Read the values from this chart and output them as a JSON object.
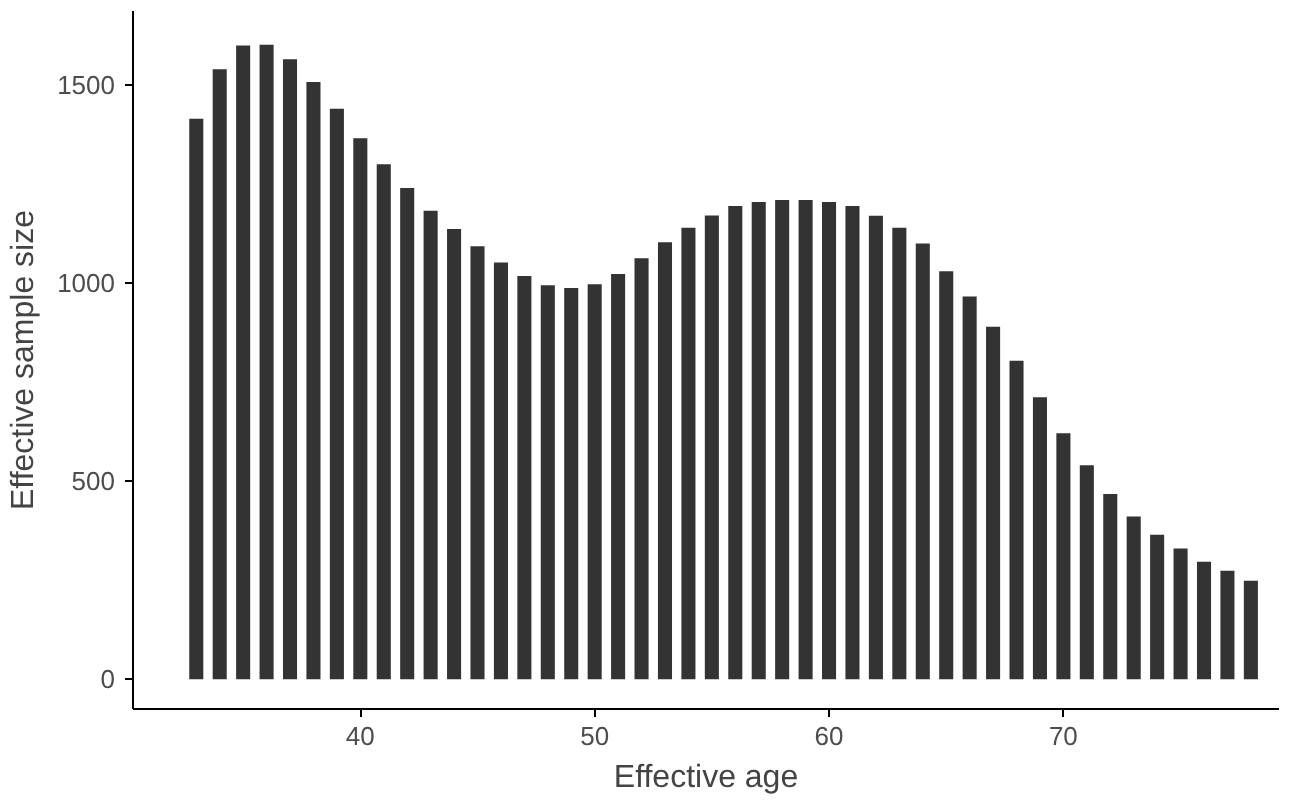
{
  "chart_data": {
    "type": "bar",
    "xlabel": "Effective age",
    "ylabel": "Effective sample size",
    "x": [
      33,
      34,
      35,
      36,
      37,
      38,
      39,
      40,
      41,
      42,
      43,
      44,
      45,
      46,
      47,
      48,
      49,
      50,
      51,
      52,
      53,
      54,
      55,
      56,
      57,
      58,
      59,
      60,
      61,
      62,
      63,
      64,
      65,
      66,
      67,
      68,
      69,
      70,
      71,
      72,
      73,
      74,
      75,
      76,
      77,
      78
    ],
    "series": [
      {
        "color": "#333333",
        "values": [
          1415,
          1540,
          1600,
          1602,
          1565,
          1508,
          1440,
          1366,
          1300,
          1240,
          1183,
          1137,
          1093,
          1052,
          1018,
          995,
          988,
          997,
          1023,
          1063,
          1103,
          1140,
          1171,
          1195,
          1205,
          1210,
          1210,
          1205,
          1195,
          1170,
          1140,
          1100,
          1030,
          966,
          890,
          804,
          712,
          621,
          540,
          468,
          411,
          365,
          330,
          297,
          274,
          249
        ]
      }
    ],
    "xlim": [
      30.3,
      79.2
    ],
    "ylim": [
      -75,
      1687
    ],
    "xticks": [
      40,
      50,
      60,
      70
    ],
    "yticks": [
      0,
      500,
      1000,
      1500
    ],
    "grid": false
  }
}
